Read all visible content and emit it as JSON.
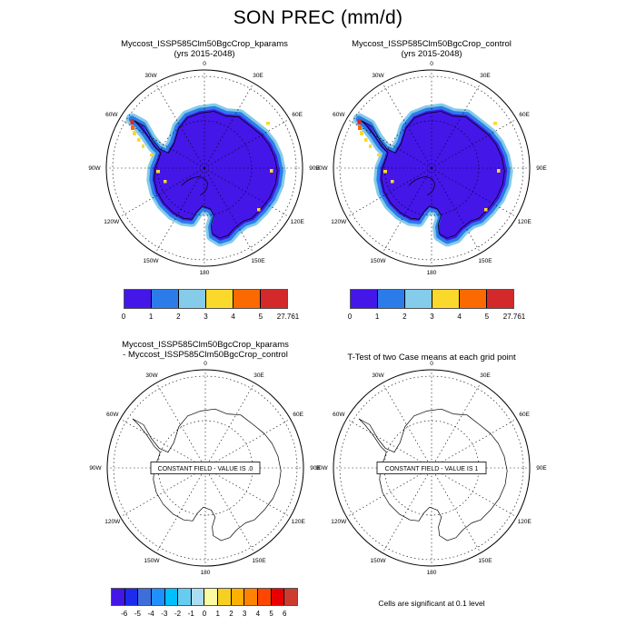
{
  "title": "SON PREC (mm/d)",
  "panels": {
    "top_left": {
      "line1": "Myccost_ISSP585Clm50BgcCrop_kparams",
      "line2": "(yrs 2015-2048)"
    },
    "top_right": {
      "line1": "Myccost_ISSP585Clm50BgcCrop_control",
      "line2": "(yrs 2015-2048)"
    },
    "bottom_left": {
      "line1": "Myccost_ISSP585Clm50BgcCrop_kparams",
      "line2": "- Myccost_ISSP585Clm50BgcCrop_control"
    },
    "bottom_right": {
      "line1": "T-Test of two Case means at each grid point"
    }
  },
  "lon_labels": [
    "0",
    "30E",
    "60E",
    "90E",
    "120E",
    "150E",
    "180",
    "150W",
    "120W",
    "90W",
    "60W",
    "30W"
  ],
  "colorbar_top": {
    "ticks": [
      "0",
      "1",
      "2",
      "3",
      "4",
      "5",
      "27.761"
    ],
    "colors": [
      "#4416E8",
      "#2B7CE9",
      "#85CBEA",
      "#FBD92C",
      "#FA6A00",
      "#D3292B"
    ]
  },
  "colorbar_diff": {
    "ticks": [
      "-6",
      "-5",
      "-4",
      "-3",
      "-2",
      "-1",
      "0",
      "1",
      "2",
      "3",
      "4",
      "5",
      "6"
    ],
    "colors": [
      "#4416E8",
      "#1C2BEE",
      "#3E6EDC",
      "#1E90FF",
      "#00BFFF",
      "#66CCF0",
      "#AADCF2",
      "#FAFAA0",
      "#F5D020",
      "#FFAF00",
      "#FF8200",
      "#FF4600",
      "#E80000",
      "#CD3A30"
    ]
  },
  "constant_field": {
    "diff_label": "CONSTANT FIELD - VALUE IS .0",
    "ttest_label": "CONSTANT FIELD - VALUE IS 1"
  },
  "caption": "Cells are significant at 0.1 level",
  "map_colors": {
    "interior": "#4416E8",
    "coastal_band": "#2B7CE9",
    "outer_band": "#85CBEA",
    "spot_yellow": "#FBD92C",
    "spot_orange": "#FA6A00",
    "spot_red": "#D3292B",
    "coastline": "#000000"
  },
  "chart_data": [
    {
      "type": "heatmap",
      "title": "Myccost_ISSP585Clm50BgcCrop_kparams (yrs 2015-2048)",
      "variable": "SON PREC",
      "units": "mm/d",
      "projection": "south polar stereographic, lon gridlines every 30 deg",
      "levels": [
        0,
        1,
        2,
        3,
        4,
        5,
        27.761
      ],
      "palette": [
        "#4416E8",
        "#2B7CE9",
        "#85CBEA",
        "#FBD92C",
        "#FA6A00",
        "#D3292B"
      ],
      "summary": "Antarctic interior 0-1 mm/d, coastal fringe 1-3 mm/d, peninsula spots up to 27.761 mm/d"
    },
    {
      "type": "heatmap",
      "title": "Myccost_ISSP585Clm50BgcCrop_control (yrs 2015-2048)",
      "variable": "SON PREC",
      "units": "mm/d",
      "projection": "south polar stereographic, lon gridlines every 30 deg",
      "levels": [
        0,
        1,
        2,
        3,
        4,
        5,
        27.761
      ],
      "palette": [
        "#4416E8",
        "#2B7CE9",
        "#85CBEA",
        "#FBD92C",
        "#FA6A00",
        "#D3292B"
      ],
      "summary": "Nearly identical to kparams case"
    },
    {
      "type": "heatmap",
      "title": "Myccost_ISSP585Clm50BgcCrop_kparams - Myccost_ISSP585Clm50BgcCrop_control",
      "variable": "SON PREC difference",
      "units": "mm/d",
      "levels": [
        -6,
        -5,
        -4,
        -3,
        -2,
        -1,
        0,
        1,
        2,
        3,
        4,
        5,
        6
      ],
      "palette": [
        "#4416E8",
        "#1C2BEE",
        "#3E6EDC",
        "#1E90FF",
        "#00BFFF",
        "#66CCF0",
        "#AADCF2",
        "#FAFAA0",
        "#F5D020",
        "#FFAF00",
        "#FF8200",
        "#FF4600",
        "#E80000",
        "#CD3A30"
      ],
      "field_note": "CONSTANT FIELD - VALUE IS .0"
    },
    {
      "type": "heatmap",
      "title": "T-Test of two Case means at each grid point",
      "caption": "Cells are significant at 0.1 level",
      "field_note": "CONSTANT FIELD - VALUE IS 1"
    }
  ]
}
